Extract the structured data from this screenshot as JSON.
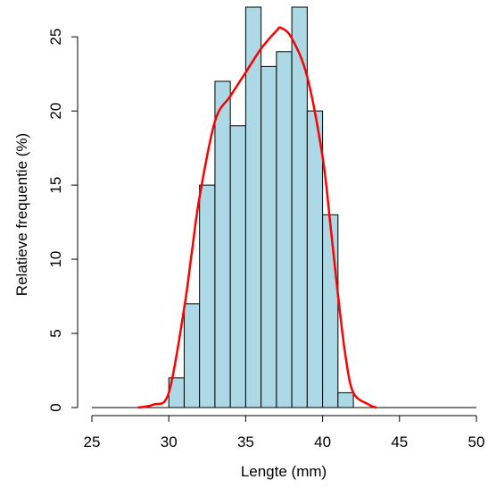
{
  "chart_data": {
    "type": "histogram",
    "xlabel": "Lengte (mm)",
    "ylabel": "Relatieve frequentie (%)",
    "bins": [
      30,
      31,
      32,
      33,
      34,
      35,
      36,
      37,
      38,
      39,
      40,
      41,
      42
    ],
    "values": [
      2,
      7,
      15,
      22,
      19,
      27,
      23,
      24,
      27,
      20,
      13,
      1
    ],
    "color": "#add8e6",
    "edgecolor": "#000000",
    "density": {
      "x": [
        28,
        29,
        30,
        31,
        31.5,
        32,
        33,
        34,
        35,
        36,
        37,
        37.3,
        38,
        39,
        40,
        40.5,
        41,
        41.5,
        42,
        43,
        43.5
      ],
      "values": [
        0,
        0.2,
        1,
        6.7,
        10.5,
        14.2,
        19.3,
        21,
        22.6,
        24.2,
        25.4,
        25.6,
        24.9,
        22.3,
        16.9,
        12.4,
        7.6,
        3.4,
        1,
        0.2,
        0
      ],
      "color": "#ff0000"
    },
    "xlim": [
      25,
      50
    ],
    "ylim": [
      0,
      27
    ],
    "xticks": [
      25,
      30,
      35,
      40,
      45,
      50
    ],
    "yticks": [
      0,
      5,
      10,
      15,
      20,
      25
    ]
  }
}
